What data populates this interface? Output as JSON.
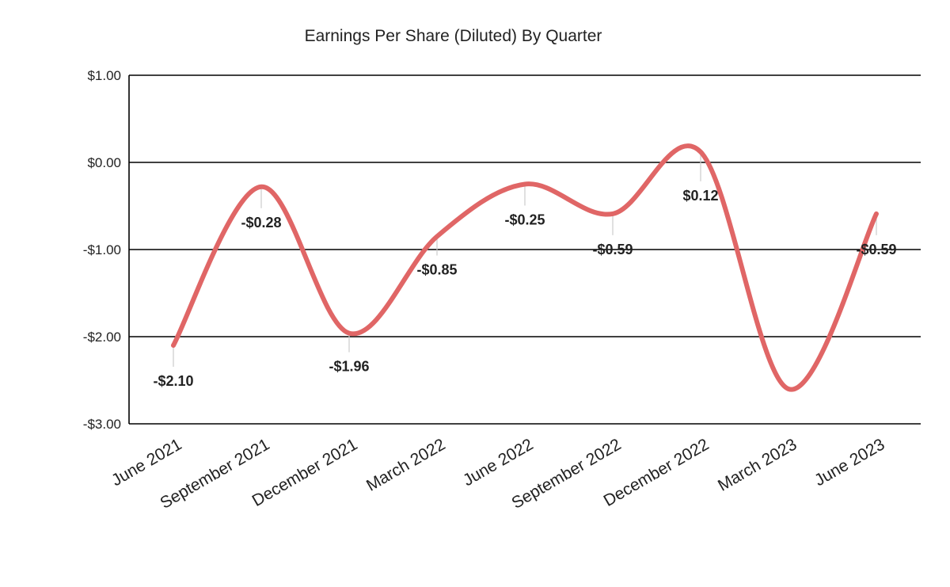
{
  "chart_data": {
    "type": "line",
    "title": "Earnings Per Share (Diluted) By Quarter",
    "xlabel": "",
    "ylabel": "",
    "categories": [
      "June 2021",
      "September 2021",
      "December 2021",
      "March 2022",
      "June 2022",
      "September 2022",
      "December 2022",
      "March 2023",
      "June 2023"
    ],
    "series": [
      {
        "values": [
          -2.1,
          -0.28,
          -1.96,
          -0.85,
          -0.25,
          -0.59,
          0.12,
          -2.6,
          -0.59
        ],
        "color": "#e06666"
      }
    ],
    "data_labels": [
      "-$2.10",
      "-$0.28",
      "-$1.96",
      "-$0.85",
      "-$0.25",
      "-$0.59",
      "$0.12",
      "",
      "-$0.59"
    ],
    "ylim": [
      -3,
      1
    ],
    "yticks": [
      1,
      0,
      -1,
      -2,
      -3
    ],
    "ytick_labels": [
      "$1.00",
      "$0.00",
      "-$1.00",
      "-$2.00",
      "-$3.00"
    ],
    "grid": true,
    "smooth": true,
    "legend": "none"
  }
}
